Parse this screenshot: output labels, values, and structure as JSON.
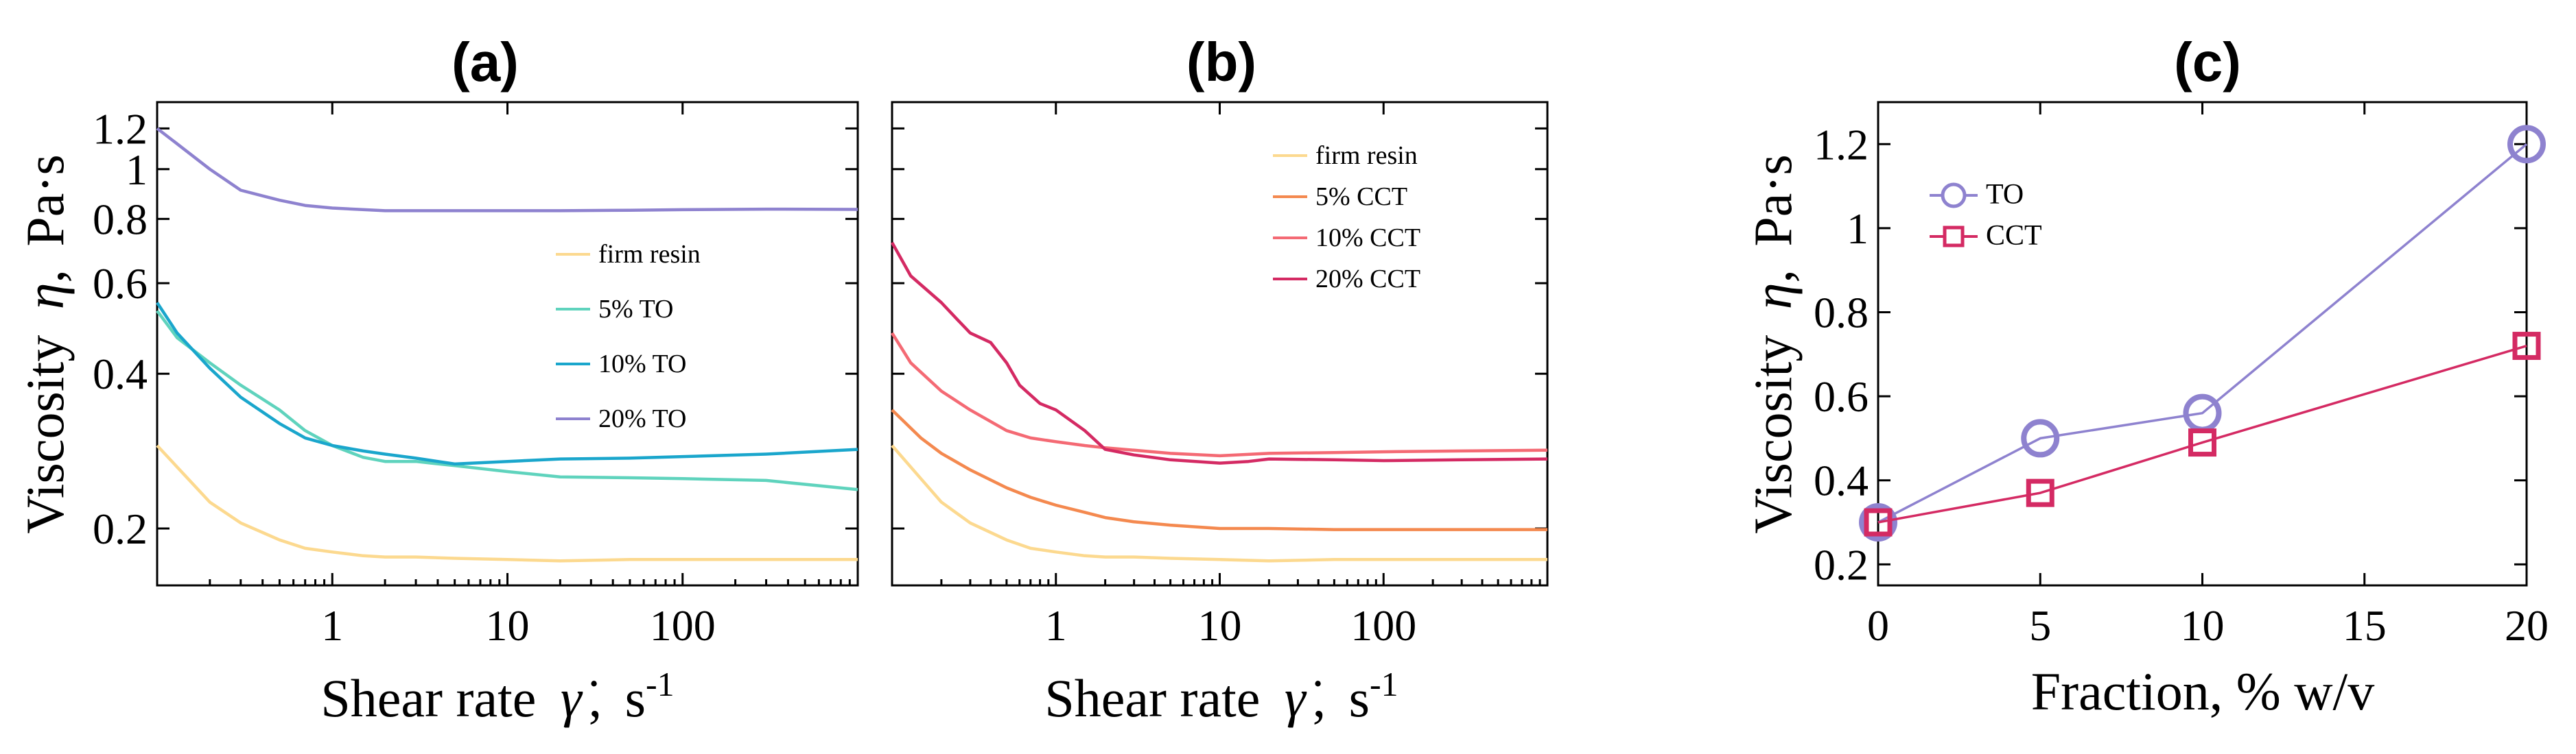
{
  "chart_data": [
    {
      "type": "line",
      "panel": "(a)",
      "title": "(a)",
      "xlabel": "Shear rate",
      "xsymbol": "γ̇",
      "xunit": "s",
      "xunit_sup": "-1",
      "ylabel": "Viscosity",
      "ysymbol": "η",
      "yunit": "Pa·s",
      "xscale": "log",
      "yscale": "log",
      "xlim": [
        0.1,
        1000
      ],
      "ylim": [
        0.155,
        1.35
      ],
      "xticks": [
        1,
        10,
        100
      ],
      "xtick_labels": [
        "1",
        "10",
        "100"
      ],
      "yticks": [
        0.2,
        0.4,
        0.6,
        0.8,
        1,
        1.2
      ],
      "ytick_labels": [
        "0.2",
        "0.4",
        "0.6",
        "0.8",
        "1",
        "1.2"
      ],
      "legend": "center-right",
      "series": [
        {
          "name": "firm resin",
          "color": "#fcd98f",
          "x": [
            0.1,
            0.15,
            0.2,
            0.3,
            0.5,
            0.7,
            1,
            1.5,
            2,
            3,
            5,
            10,
            20,
            50,
            100,
            300,
            1000
          ],
          "y": [
            0.29,
            0.25,
            0.225,
            0.205,
            0.19,
            0.183,
            0.18,
            0.177,
            0.176,
            0.176,
            0.175,
            0.174,
            0.173,
            0.174,
            0.174,
            0.174,
            0.174
          ]
        },
        {
          "name": "5% TO",
          "color": "#5fd3bd",
          "x": [
            0.1,
            0.13,
            0.2,
            0.3,
            0.5,
            0.7,
            1,
            1.5,
            2,
            3,
            5,
            10,
            20,
            50,
            100,
            300,
            1000
          ],
          "y": [
            0.53,
            0.47,
            0.42,
            0.38,
            0.34,
            0.31,
            0.29,
            0.275,
            0.27,
            0.27,
            0.265,
            0.258,
            0.252,
            0.251,
            0.25,
            0.248,
            0.238
          ]
        },
        {
          "name": "10% TO",
          "color": "#1aa6cc",
          "x": [
            0.1,
            0.13,
            0.2,
            0.3,
            0.5,
            0.7,
            1,
            1.5,
            2,
            3,
            5,
            10,
            20,
            50,
            100,
            300,
            1000
          ],
          "y": [
            0.55,
            0.48,
            0.41,
            0.36,
            0.32,
            0.3,
            0.29,
            0.283,
            0.279,
            0.274,
            0.267,
            0.27,
            0.273,
            0.274,
            0.276,
            0.279,
            0.285
          ]
        },
        {
          "name": "20% TO",
          "color": "#8e82cf",
          "x": [
            0.1,
            0.13,
            0.2,
            0.3,
            0.5,
            0.7,
            1,
            2,
            5,
            10,
            20,
            50,
            100,
            300,
            1000
          ],
          "y": [
            1.2,
            1.12,
            1.0,
            0.91,
            0.87,
            0.85,
            0.84,
            0.83,
            0.83,
            0.83,
            0.83,
            0.832,
            0.834,
            0.836,
            0.835
          ]
        }
      ]
    },
    {
      "type": "line",
      "panel": "(b)",
      "title": "(b)",
      "xlabel": "Shear rate",
      "xsymbol": "γ̇",
      "xunit": "s",
      "xunit_sup": "-1",
      "xscale": "log",
      "yscale": "log",
      "xlim": [
        0.1,
        1000
      ],
      "ylim": [
        0.155,
        1.35
      ],
      "xticks": [
        1,
        10,
        100
      ],
      "xtick_labels": [
        "1",
        "10",
        "100"
      ],
      "yticks": [
        0.2,
        0.4,
        0.6,
        0.8,
        1,
        1.2
      ],
      "legend": "top-right",
      "series": [
        {
          "name": "firm resin",
          "color": "#fcd98f",
          "x": [
            0.1,
            0.15,
            0.2,
            0.3,
            0.5,
            0.7,
            1,
            1.5,
            2,
            3,
            5,
            10,
            20,
            50,
            100,
            300,
            1000
          ],
          "y": [
            0.29,
            0.25,
            0.225,
            0.205,
            0.19,
            0.183,
            0.18,
            0.177,
            0.176,
            0.176,
            0.175,
            0.174,
            0.173,
            0.174,
            0.174,
            0.174,
            0.174
          ]
        },
        {
          "name": "5% CCT",
          "color": "#f4894f",
          "x": [
            0.1,
            0.15,
            0.2,
            0.3,
            0.5,
            0.7,
            1,
            1.5,
            2,
            3,
            5,
            10,
            20,
            50,
            100,
            300,
            1000
          ],
          "y": [
            0.34,
            0.3,
            0.28,
            0.26,
            0.24,
            0.23,
            0.222,
            0.215,
            0.21,
            0.206,
            0.203,
            0.2,
            0.2,
            0.199,
            0.199,
            0.199,
            0.199
          ]
        },
        {
          "name": "10% CCT",
          "color": "#f46a74",
          "x": [
            0.1,
            0.13,
            0.2,
            0.3,
            0.5,
            0.7,
            1,
            1.5,
            2,
            3,
            5,
            10,
            20,
            50,
            100,
            300,
            1000
          ],
          "y": [
            0.48,
            0.42,
            0.37,
            0.34,
            0.31,
            0.3,
            0.295,
            0.29,
            0.287,
            0.284,
            0.28,
            0.277,
            0.28,
            0.281,
            0.282,
            0.283,
            0.284
          ]
        },
        {
          "name": "20% CCT",
          "color": "#d42a63",
          "x": [
            0.1,
            0.13,
            0.2,
            0.25,
            0.3,
            0.4,
            0.5,
            0.6,
            0.8,
            1,
            1.5,
            2,
            3,
            5,
            10,
            15,
            20,
            50,
            100,
            300,
            1000
          ],
          "y": [
            0.72,
            0.62,
            0.55,
            0.51,
            0.48,
            0.46,
            0.42,
            0.38,
            0.35,
            0.34,
            0.31,
            0.285,
            0.278,
            0.272,
            0.268,
            0.27,
            0.273,
            0.272,
            0.271,
            0.272,
            0.273
          ]
        }
      ]
    },
    {
      "type": "line",
      "panel": "(c)",
      "title": "(c)",
      "xlabel": "Fraction, % w/v",
      "ylabel": "Viscosity",
      "ysymbol": "η",
      "yunit": "Pa·s",
      "xlim": [
        0,
        20
      ],
      "ylim": [
        0.15,
        1.3
      ],
      "xticks": [
        0,
        5,
        10,
        15,
        20
      ],
      "xtick_labels": [
        "0",
        "5",
        "10",
        "15",
        "20"
      ],
      "yticks": [
        0.2,
        0.4,
        0.6,
        0.8,
        1,
        1.2
      ],
      "ytick_labels": [
        "0.2",
        "0.4",
        "0.6",
        "0.8",
        "1",
        "1.2"
      ],
      "legend": "top-left",
      "series": [
        {
          "name": "TO",
          "color": "#8e82cf",
          "marker": "circle",
          "x": [
            0,
            5,
            10,
            20
          ],
          "y": [
            0.3,
            0.5,
            0.56,
            1.2
          ]
        },
        {
          "name": "CCT",
          "color": "#d42a63",
          "marker": "square",
          "x": [
            0,
            5,
            10,
            20
          ],
          "y": [
            0.3,
            0.37,
            0.49,
            0.72
          ]
        }
      ]
    }
  ]
}
